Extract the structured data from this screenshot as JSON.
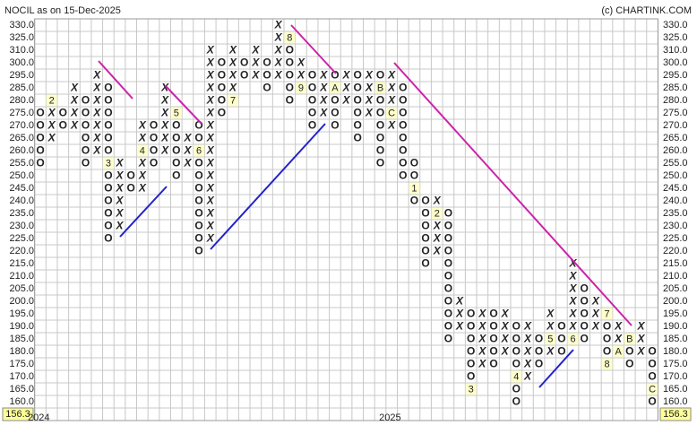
{
  "title": "NOCIL as on 15-Dec-2025",
  "credit": "(c) CHARTINK.COM",
  "chart_data": {
    "type": "point-and-figure",
    "yticks": [
      {
        "value": 330,
        "label": "330.0"
      },
      {
        "value": 325,
        "label": "325.0"
      },
      {
        "value": 310,
        "label": "310.0"
      },
      {
        "value": 300,
        "label": "300.0"
      },
      {
        "value": 295,
        "label": "295.0"
      },
      {
        "value": 285,
        "label": "285.0"
      },
      {
        "value": 280,
        "label": "280.0"
      },
      {
        "value": 275,
        "label": "275.0"
      },
      {
        "value": 270,
        "label": "270.0"
      },
      {
        "value": 265,
        "label": "265.0"
      },
      {
        "value": 260,
        "label": "260.0"
      },
      {
        "value": 255,
        "label": "255.0"
      },
      {
        "value": 250,
        "label": "250.0"
      },
      {
        "value": 245,
        "label": "245.0"
      },
      {
        "value": 240,
        "label": "240.0"
      },
      {
        "value": 235,
        "label": "235.0"
      },
      {
        "value": 230,
        "label": "230.0"
      },
      {
        "value": 225,
        "label": "225.0"
      },
      {
        "value": 220,
        "label": "220.0"
      },
      {
        "value": 215,
        "label": "215.0"
      },
      {
        "value": 210,
        "label": "210.0"
      },
      {
        "value": 205,
        "label": "205.0"
      },
      {
        "value": 200,
        "label": "200.0"
      },
      {
        "value": 195,
        "label": "195.0"
      },
      {
        "value": 190,
        "label": "190.0"
      },
      {
        "value": 185,
        "label": "185.0"
      },
      {
        "value": 180,
        "label": "180.0"
      },
      {
        "value": 175,
        "label": "175.0"
      },
      {
        "value": 170,
        "label": "170.0"
      },
      {
        "value": 165,
        "label": "165.0"
      },
      {
        "value": 160,
        "label": "160.0"
      }
    ],
    "last_price": 156.3,
    "year_labels": [
      {
        "label": "2024",
        "column": 0
      },
      {
        "label": "2025",
        "column": 31
      }
    ],
    "x_color": "#2e8b2e",
    "o_color": "#e02424",
    "columns": [
      {
        "type": "O",
        "low": 255,
        "high": 275
      },
      {
        "type": "X",
        "low": 265,
        "high": 280,
        "markers": [
          {
            "value": 280,
            "label": "2"
          }
        ]
      },
      {
        "type": "O",
        "low": 270,
        "high": 275
      },
      {
        "type": "X",
        "low": 270,
        "high": 285
      },
      {
        "type": "O",
        "low": 255,
        "high": 280
      },
      {
        "type": "X",
        "low": 260,
        "high": 295
      },
      {
        "type": "O",
        "low": 225,
        "high": 285,
        "markers": [
          {
            "value": 255,
            "label": "3"
          }
        ]
      },
      {
        "type": "X",
        "low": 230,
        "high": 255
      },
      {
        "type": "O",
        "low": 245,
        "high": 250
      },
      {
        "type": "X",
        "low": 245,
        "high": 270,
        "markers": [
          {
            "value": 260,
            "label": "4"
          }
        ]
      },
      {
        "type": "O",
        "low": 255,
        "high": 270
      },
      {
        "type": "X",
        "low": 260,
        "high": 285
      },
      {
        "type": "O",
        "low": 250,
        "high": 275,
        "markers": [
          {
            "value": 275,
            "label": "5"
          }
        ]
      },
      {
        "type": "X",
        "low": 255,
        "high": 265
      },
      {
        "type": "O",
        "low": 220,
        "high": 270,
        "markers": [
          {
            "value": 260,
            "label": "6"
          }
        ]
      },
      {
        "type": "X",
        "low": 225,
        "high": 310
      },
      {
        "type": "O",
        "low": 275,
        "high": 300
      },
      {
        "type": "X",
        "low": 280,
        "high": 310,
        "markers": [
          {
            "value": 280,
            "label": "7"
          }
        ]
      },
      {
        "type": "O",
        "low": 295,
        "high": 300
      },
      {
        "type": "X",
        "low": 295,
        "high": 310
      },
      {
        "type": "O",
        "low": 285,
        "high": 300
      },
      {
        "type": "X",
        "low": 295,
        "high": 330
      },
      {
        "type": "O",
        "low": 280,
        "high": 325,
        "markers": [
          {
            "value": 325,
            "label": "8"
          }
        ]
      },
      {
        "type": "X",
        "low": 285,
        "high": 300,
        "markers": [
          {
            "value": 285,
            "label": "9"
          }
        ]
      },
      {
        "type": "O",
        "low": 270,
        "high": 295
      },
      {
        "type": "X",
        "low": 275,
        "high": 295
      },
      {
        "type": "O",
        "low": 270,
        "high": 295,
        "markers": [
          {
            "value": 285,
            "label": "A"
          }
        ]
      },
      {
        "type": "X",
        "low": 280,
        "high": 295
      },
      {
        "type": "O",
        "low": 265,
        "high": 295
      },
      {
        "type": "X",
        "low": 275,
        "high": 295
      },
      {
        "type": "O",
        "low": 255,
        "high": 295,
        "markers": [
          {
            "value": 285,
            "label": "B"
          }
        ]
      },
      {
        "type": "X",
        "low": 270,
        "high": 295,
        "markers": [
          {
            "value": 275,
            "label": "C"
          }
        ]
      },
      {
        "type": "O",
        "low": 250,
        "high": 285
      },
      {
        "type": "O",
        "low": 240,
        "high": 255,
        "markers": [
          {
            "value": 245,
            "label": "1"
          }
        ]
      },
      {
        "type": "O",
        "low": 215,
        "high": 240
      },
      {
        "type": "X",
        "low": 220,
        "high": 240,
        "markers": [
          {
            "value": 235,
            "label": "2"
          }
        ]
      },
      {
        "type": "O",
        "low": 185,
        "high": 235
      },
      {
        "type": "X",
        "low": 190,
        "high": 200
      },
      {
        "type": "O",
        "low": 165,
        "high": 195,
        "markers": [
          {
            "value": 165,
            "label": "3"
          }
        ]
      },
      {
        "type": "X",
        "low": 175,
        "high": 195
      },
      {
        "type": "O",
        "low": 175,
        "high": 195
      },
      {
        "type": "X",
        "low": 180,
        "high": 195
      },
      {
        "type": "O",
        "low": 160,
        "high": 190,
        "markers": [
          {
            "value": 170,
            "label": "4"
          }
        ]
      },
      {
        "type": "X",
        "low": 170,
        "high": 190
      },
      {
        "type": "O",
        "low": 175,
        "high": 185
      },
      {
        "type": "X",
        "low": 180,
        "high": 195,
        "markers": [
          {
            "value": 185,
            "label": "5"
          }
        ]
      },
      {
        "type": "O",
        "low": 180,
        "high": 190
      },
      {
        "type": "X",
        "low": 185,
        "high": 215,
        "markers": [
          {
            "value": 185,
            "label": "6"
          }
        ]
      },
      {
        "type": "O",
        "low": 185,
        "high": 205
      },
      {
        "type": "X",
        "low": 190,
        "high": 200
      },
      {
        "type": "O",
        "low": 175,
        "high": 195,
        "markers": [
          {
            "value": 195,
            "label": "7"
          },
          {
            "value": 175,
            "label": "8"
          }
        ]
      },
      {
        "type": "X",
        "low": 180,
        "high": 190,
        "markers": [
          {
            "value": 180,
            "label": "A"
          }
        ]
      },
      {
        "type": "O",
        "low": 175,
        "high": 185,
        "markers": [
          {
            "value": 185,
            "label": "B"
          }
        ]
      },
      {
        "type": "X",
        "low": 180,
        "high": 190
      },
      {
        "type": "O",
        "low": 160,
        "high": 180,
        "markers": [
          {
            "value": 165,
            "label": "C"
          }
        ]
      }
    ]
  }
}
